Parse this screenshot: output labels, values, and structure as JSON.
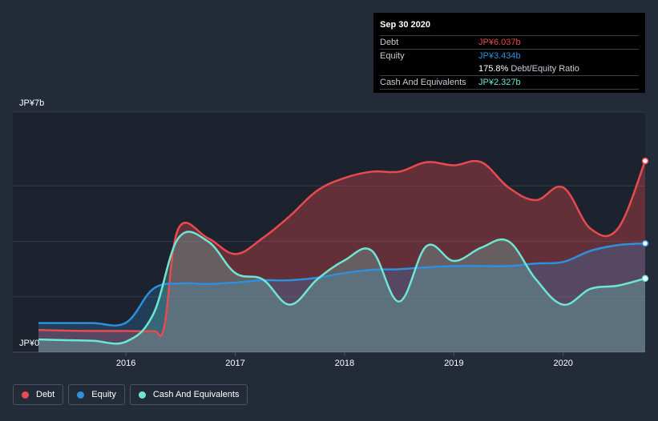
{
  "tooltip": {
    "date": "Sep 30 2020",
    "debt_label": "Debt",
    "debt_value": "JP¥6.037b",
    "equity_label": "Equity",
    "equity_value": "JP¥3.434b",
    "ratio_value": "175.8%",
    "ratio_label": "Debt/Equity Ratio",
    "cash_label": "Cash And Equivalents",
    "cash_value": "JP¥2.327b"
  },
  "legend": {
    "debt": "Debt",
    "equity": "Equity",
    "cash": "Cash And Equivalents"
  },
  "colors": {
    "background": "#232b38",
    "debt": "#e84a4f",
    "equity": "#2e8fdc",
    "cash": "#6ee6d2"
  },
  "chart_data": {
    "type": "area",
    "y_tick_labels": [
      "JP¥0",
      "JP¥7b"
    ],
    "x_tick_labels": [
      "2016",
      "2017",
      "2018",
      "2019",
      "2020"
    ],
    "ylim": [
      0,
      7
    ],
    "xlim": [
      2015.2,
      2020.75
    ],
    "grid": true,
    "legend_position": "bottom-left",
    "series": [
      {
        "name": "Debt",
        "x": [
          2015.2,
          2015.45,
          2015.7,
          2016.0,
          2016.25,
          2016.35,
          2016.48,
          2016.75,
          2017.0,
          2017.25,
          2017.5,
          2017.75,
          2018.0,
          2018.25,
          2018.5,
          2018.75,
          2019.0,
          2019.25,
          2019.5,
          2019.75,
          2020.0,
          2020.25,
          2020.5,
          2020.75
        ],
        "y": [
          0.7,
          0.68,
          0.67,
          0.67,
          0.67,
          0.8,
          3.9,
          3.6,
          3.1,
          3.6,
          4.3,
          5.1,
          5.5,
          5.7,
          5.7,
          6.0,
          5.9,
          6.0,
          5.2,
          4.8,
          5.2,
          3.9,
          3.9,
          6.037
        ]
      },
      {
        "name": "Equity",
        "x": [
          2015.2,
          2015.45,
          2015.7,
          2016.0,
          2016.25,
          2016.5,
          2016.75,
          2017.0,
          2017.25,
          2017.5,
          2017.75,
          2018.0,
          2018.25,
          2018.5,
          2018.75,
          2019.0,
          2019.25,
          2019.5,
          2019.75,
          2020.0,
          2020.25,
          2020.5,
          2020.75
        ],
        "y": [
          0.92,
          0.92,
          0.92,
          0.93,
          2.0,
          2.17,
          2.15,
          2.2,
          2.27,
          2.27,
          2.35,
          2.5,
          2.6,
          2.62,
          2.68,
          2.72,
          2.72,
          2.72,
          2.8,
          2.85,
          3.2,
          3.38,
          3.434
        ]
      },
      {
        "name": "Cash And Equivalents",
        "x": [
          2015.2,
          2015.45,
          2015.7,
          2016.0,
          2016.25,
          2016.48,
          2016.75,
          2017.0,
          2017.25,
          2017.5,
          2017.75,
          2018.0,
          2018.25,
          2018.5,
          2018.75,
          2019.0,
          2019.25,
          2019.5,
          2019.75,
          2020.0,
          2020.25,
          2020.5,
          2020.75
        ],
        "y": [
          0.4,
          0.38,
          0.36,
          0.33,
          1.2,
          3.6,
          3.5,
          2.5,
          2.3,
          1.5,
          2.3,
          2.9,
          3.2,
          1.6,
          3.35,
          2.88,
          3.3,
          3.5,
          2.3,
          1.5,
          2.0,
          2.1,
          2.327
        ]
      }
    ]
  }
}
